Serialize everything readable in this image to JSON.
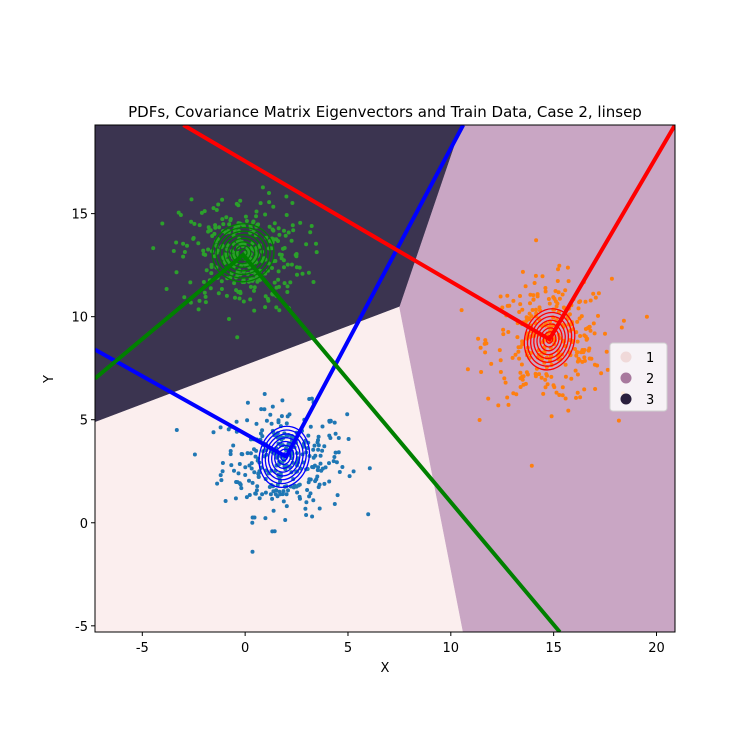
{
  "chart_data": {
    "type": "scatter",
    "title": "PDFs, Covariance Matrix Eigenvectors and Train Data, Case 2, linsep",
    "xlabel": "X",
    "ylabel": "Y",
    "xlim": [
      -7.3,
      20.9
    ],
    "ylim": [
      -5.3,
      19.3
    ],
    "xticks": [
      -5,
      0,
      5,
      10,
      15,
      20
    ],
    "yticks": [
      -5,
      0,
      5,
      10,
      15
    ],
    "grid": false,
    "legend": {
      "placement": "right",
      "entries": [
        {
          "label": "1",
          "color": "#f0d9d9"
        },
        {
          "label": "2",
          "color": "#a8799e"
        },
        {
          "label": "3",
          "color": "#2a1f3d"
        }
      ]
    },
    "decision_regions": [
      {
        "label": "1",
        "color": "#fbeeee",
        "polygon": [
          [
            -7.3,
            4.9
          ],
          [
            7.5,
            10.5
          ],
          [
            10.6,
            -5.3
          ],
          [
            -7.3,
            -5.3
          ]
        ]
      },
      {
        "label": "2",
        "color": "#c9a6c4",
        "polygon": [
          [
            7.5,
            10.5
          ],
          [
            10.6,
            -5.3
          ],
          [
            20.9,
            -5.3
          ],
          [
            20.9,
            19.3
          ],
          [
            10.5,
            19.3
          ]
        ]
      },
      {
        "label": "3",
        "color": "#3b3450",
        "polygon": [
          [
            -7.3,
            19.3
          ],
          [
            10.5,
            19.3
          ],
          [
            7.5,
            10.5
          ],
          [
            -7.3,
            4.9
          ]
        ]
      }
    ],
    "clusters": [
      {
        "name": "1",
        "color": "#1f77b4",
        "center": [
          1.9,
          3.0
        ],
        "spread": [
          1.5,
          1.3
        ],
        "n": 300
      },
      {
        "name": "2",
        "color": "#ff7f0e",
        "center": [
          14.8,
          8.8
        ],
        "spread": [
          1.5,
          1.5
        ],
        "n": 300
      },
      {
        "name": "3",
        "color": "#2ca02c",
        "center": [
          -0.1,
          13.0
        ],
        "spread": [
          1.5,
          1.4
        ],
        "n": 300
      }
    ],
    "pdf_contours": [
      {
        "color": "#0000ff",
        "center": [
          1.9,
          3.2
        ],
        "radii": [
          1.2,
          1.5
        ],
        "levels": 8
      },
      {
        "color": "#ff0000",
        "center": [
          14.8,
          8.9
        ],
        "radii": [
          1.2,
          1.5
        ],
        "levels": 8
      },
      {
        "color": "#008000",
        "center": [
          -0.1,
          13.1
        ],
        "radii": [
          1.5,
          1.4
        ],
        "levels": 8
      }
    ],
    "eigenvector_lines": [
      {
        "color": "#0000ff",
        "points": [
          [
            -7.3,
            8.4
          ],
          [
            2.0,
            3.2
          ],
          [
            10.6,
            19.3
          ]
        ]
      },
      {
        "color": "#ff0000",
        "points": [
          [
            -3.0,
            19.3
          ],
          [
            14.8,
            8.9
          ],
          [
            20.9,
            19.3
          ]
        ]
      },
      {
        "color": "#008000",
        "points": [
          [
            -7.3,
            7.0
          ],
          [
            -0.1,
            13.0
          ],
          [
            15.3,
            -5.3
          ]
        ]
      }
    ]
  }
}
